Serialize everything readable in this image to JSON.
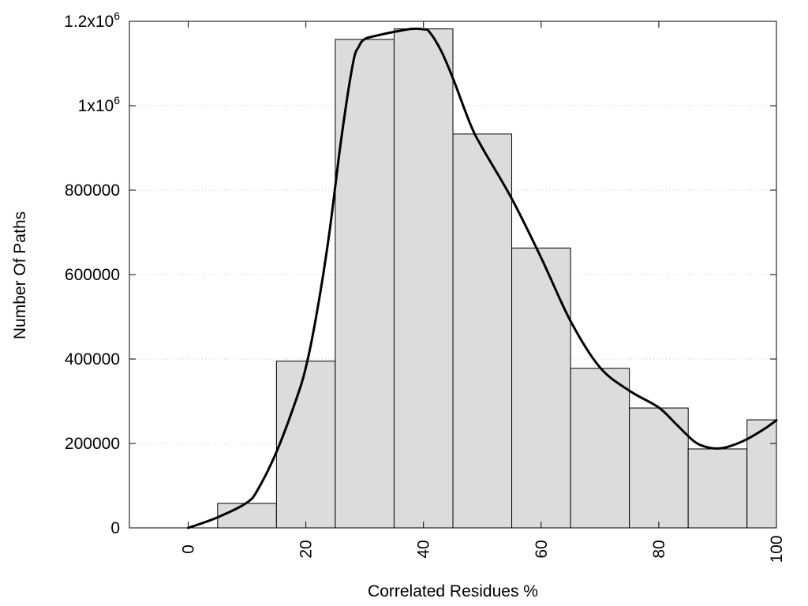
{
  "chart_data": {
    "type": "bar",
    "xlabel": "Correlated Residues %",
    "ylabel": "Number Of Paths",
    "xlim": [
      -10,
      100
    ],
    "ylim": [
      0,
      1200000
    ],
    "grid": true,
    "x_ticks": [
      0,
      20,
      40,
      60,
      80,
      100
    ],
    "y_ticks": [
      {
        "value": 0,
        "label": "0"
      },
      {
        "value": 200000,
        "label": "200000"
      },
      {
        "value": 400000,
        "label": "400000"
      },
      {
        "value": 600000,
        "label": "600000"
      },
      {
        "value": 800000,
        "label": "800000"
      },
      {
        "value": 1000000,
        "label": "1x10",
        "sup": "6"
      },
      {
        "value": 1200000,
        "label": "1.2x10",
        "sup": "6"
      }
    ],
    "bins": [
      {
        "from": 5,
        "to": 15,
        "value": 58000
      },
      {
        "from": 15,
        "to": 25,
        "value": 395000
      },
      {
        "from": 25,
        "to": 35,
        "value": 1157000
      },
      {
        "from": 35,
        "to": 45,
        "value": 1182000
      },
      {
        "from": 45,
        "to": 55,
        "value": 933000
      },
      {
        "from": 55,
        "to": 65,
        "value": 663000
      },
      {
        "from": 65,
        "to": 75,
        "value": 378000
      },
      {
        "from": 75,
        "to": 85,
        "value": 284000
      },
      {
        "from": 85,
        "to": 95,
        "value": 187000
      },
      {
        "from": 95,
        "to": 100,
        "value": 256000
      }
    ],
    "curve": {
      "x": [
        0,
        5,
        10,
        12,
        15,
        18,
        20,
        22,
        24,
        26,
        28,
        29,
        30,
        32,
        35,
        38,
        40,
        41,
        43,
        45,
        48,
        50,
        55,
        60,
        65,
        70,
        75,
        80,
        83,
        86,
        88,
        90,
        92,
        95,
        98,
        100
      ],
      "y": [
        0,
        25000,
        60000,
        95000,
        180000,
        290000,
        380000,
        520000,
        700000,
        920000,
        1100000,
        1140000,
        1158000,
        1166000,
        1175000,
        1182000,
        1181000,
        1175000,
        1130000,
        1065000,
        955000,
        900000,
        780000,
        640000,
        490000,
        380000,
        325000,
        285000,
        245000,
        205000,
        192000,
        188000,
        193000,
        210000,
        235000,
        255000
      ]
    }
  }
}
